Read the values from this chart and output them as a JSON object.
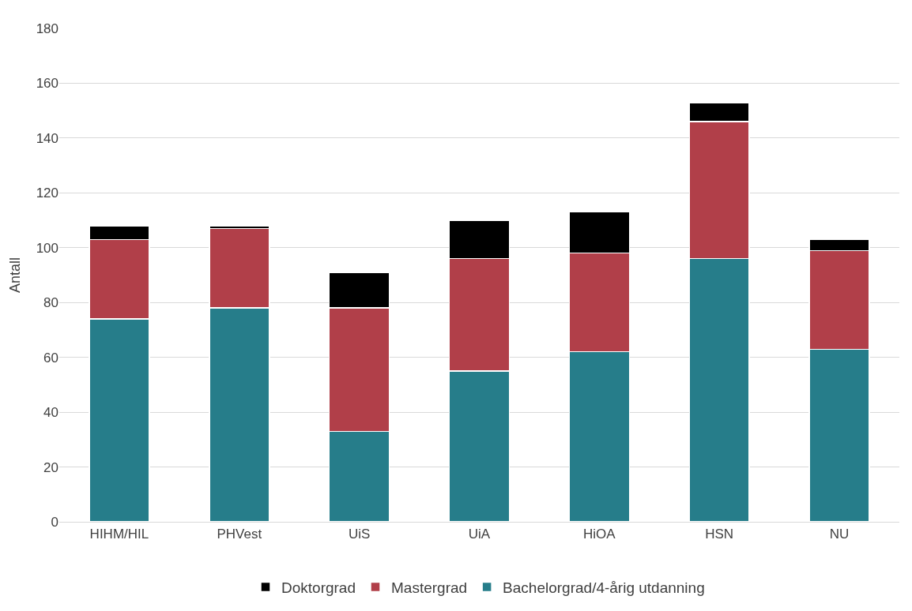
{
  "chart_data": {
    "type": "bar",
    "stacked": true,
    "ylabel": "Antall",
    "categories": [
      "HIHM/HIL",
      "PHVest",
      "UiS",
      "UiA",
      "HiOA",
      "HSN",
      "NU"
    ],
    "series": [
      {
        "name": "Bachelorgrad/4-årig utdanning",
        "color": "#267d8a",
        "values": [
          74,
          78,
          33,
          55,
          62,
          96,
          63
        ]
      },
      {
        "name": "Mastergrad",
        "color": "#b13f49",
        "values": [
          29,
          29,
          45,
          41,
          36,
          50,
          36
        ]
      },
      {
        "name": "Doktorgrad",
        "color": "#000000",
        "values": [
          5,
          1,
          13,
          14,
          15,
          7,
          4
        ]
      }
    ],
    "ylim": [
      0,
      180
    ],
    "yticks": [
      0,
      20,
      40,
      60,
      80,
      100,
      120,
      140,
      160,
      180
    ],
    "grid": "y",
    "legend": "bottom"
  }
}
